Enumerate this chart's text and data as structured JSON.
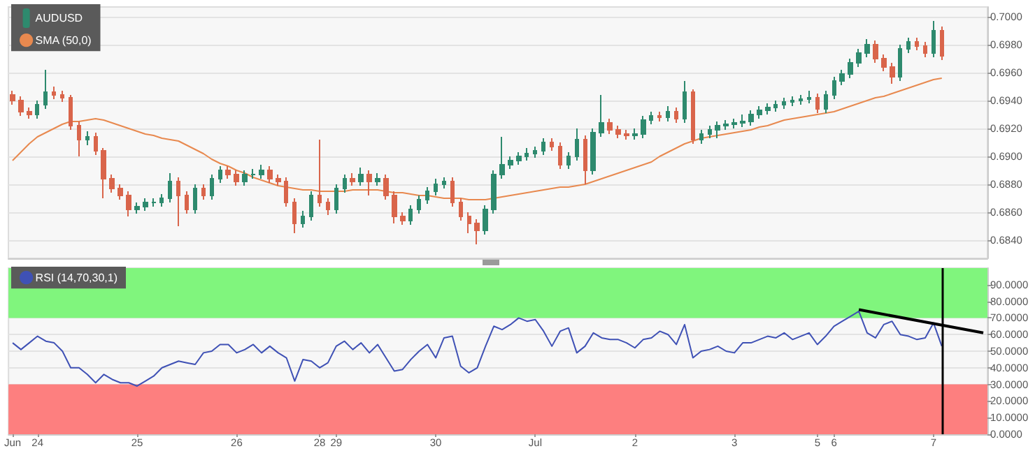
{
  "chart_data": [
    {
      "type": "candlestick",
      "legend": "top left",
      "grid": "y",
      "tick_labels": "y",
      "categories": [
        null,
        null,
        null,
        null,
        null,
        null,
        null,
        null,
        null,
        null,
        null,
        null,
        null,
        null,
        null,
        null,
        null,
        null,
        null,
        null,
        null,
        null,
        null,
        null,
        null,
        null,
        null,
        null,
        null,
        null,
        null,
        null,
        null,
        null,
        null,
        null,
        null,
        null,
        null,
        null,
        null,
        null,
        null,
        null,
        null,
        null,
        null,
        null,
        null,
        null,
        null,
        null,
        null,
        null,
        null,
        null,
        null,
        null,
        null,
        null,
        null,
        null,
        null,
        null,
        null,
        null,
        null,
        null,
        null,
        null,
        null,
        null,
        null,
        null,
        null,
        null,
        null,
        null,
        null,
        null,
        null,
        null,
        null,
        null,
        null,
        null,
        null,
        null,
        null,
        null,
        null,
        null,
        null,
        null,
        null,
        null,
        null,
        null,
        null,
        null,
        null,
        null,
        null,
        null,
        null,
        null,
        null,
        null,
        null,
        null,
        null,
        null,
        null,
        null,
        null,
        null,
        null,
        null
      ],
      "ylim": [
        0.6827,
        0.7007
      ],
      "yticks": [
        {
          "value": 0.684,
          "label": "0.6840"
        },
        {
          "value": 0.686,
          "label": "0.6860"
        },
        {
          "value": 0.688,
          "label": "0.6880"
        },
        {
          "value": 0.69,
          "label": "0.6900"
        },
        {
          "value": 0.692,
          "label": "0.6920"
        },
        {
          "value": 0.694,
          "label": "0.6940"
        },
        {
          "value": 0.696,
          "label": "0.6960"
        },
        {
          "value": 0.698,
          "label": "0.6980"
        },
        {
          "value": 0.7,
          "label": "0.7000"
        }
      ],
      "series": [
        {
          "name": "AUDUSD",
          "color": "#2e8a6e",
          "colors": [
            "#d9654b",
            "#d9654b",
            "#d9654b",
            "#2e8a6e",
            "#2e8a6e",
            "#d9654b",
            "#d9654b",
            "#d9654b",
            "#d9654b",
            "#2e8a6e",
            "#d9654b",
            "#d9654b",
            "#d9654b",
            "#d9654b",
            "#d9654b",
            "#2e8a6e",
            "#2e8a6e",
            "#2e8a6e",
            "#2e8a6e",
            "#2e8a6e",
            "#d9654b",
            "#d9654b",
            "#2e8a6e",
            "#d9654b",
            "#2e8a6e",
            "#2e8a6e",
            "#d9654b",
            "#d9654b",
            "#2e8a6e",
            "#2e8a6e",
            "#2e8a6e",
            "#d9654b",
            "#d9654b",
            "#d9654b",
            "#d9654b",
            "#2e8a6e",
            "#2e8a6e",
            "#d9654b",
            "#d9654b",
            "#2e8a6e",
            "#2e8a6e",
            "#d9654b",
            "#2e8a6e",
            "#d9654b",
            "#2e8a6e",
            "#d9654b",
            "#d9654b",
            "#d9654b",
            "#2e8a6e",
            "#2e8a6e",
            "#2e8a6e",
            "#2e8a6e",
            "#2e8a6e",
            "#d9654b",
            "#d9654b",
            "#d9654b",
            "#d9654b",
            "#2e8a6e",
            "#2e8a6e",
            "#2e8a6e",
            "#2e8a6e",
            "#2e8a6e",
            "#2e8a6e",
            "#2e8a6e",
            "#2e8a6e",
            "#d9654b",
            "#d9654b",
            "#2e8a6e",
            "#2e8a6e",
            "#d9654b",
            "#2e8a6e",
            "#2e8a6e",
            "#d9654b",
            "#d9654b",
            "#d9654b",
            "#2e8a6e",
            "#2e8a6e",
            "#2e8a6e",
            "#d9654b",
            "#2e8a6e",
            "#d9654b",
            "#2e8a6e",
            "#d9654b",
            "#2e8a6e",
            "#2e8a6e",
            "#2e8a6e",
            "#2e8a6e",
            "#2e8a6e",
            "#2e8a6e",
            "#2e8a6e",
            "#2e8a6e",
            "#2e8a6e",
            "#2e8a6e",
            "#2e8a6e",
            "#2e8a6e",
            "#2e8a6e",
            "#2e8a6e",
            "#d9654b",
            "#2e8a6e",
            "#2e8a6e",
            "#2e8a6e",
            "#2e8a6e",
            "#2e8a6e",
            "#2e8a6e",
            "#d9654b",
            "#d9654b",
            "#d9654b",
            "#2e8a6e",
            "#2e8a6e",
            "#d9654b",
            "#d9654b",
            "#2e8a6e",
            "#d9654b",
            null,
            null,
            null,
            null,
            null
          ],
          "ohlc": [
            [
              0.6944,
              0.6947,
              0.6937,
              0.694
            ],
            [
              0.694,
              0.6943,
              0.6929,
              0.6932
            ],
            [
              0.6932,
              0.6935,
              0.6927,
              0.693
            ],
            [
              0.693,
              0.694,
              0.6927,
              0.6937
            ],
            [
              0.6937,
              0.6962,
              0.6934,
              0.6946
            ],
            [
              0.6946,
              0.695,
              0.6941,
              0.6944
            ],
            [
              0.6944,
              0.6947,
              0.6939,
              0.6942
            ],
            [
              0.6942,
              0.6944,
              0.6919,
              0.6922
            ],
            [
              0.6922,
              0.6925,
              0.69,
              0.6912
            ],
            [
              0.6912,
              0.6918,
              0.6908,
              0.6914
            ],
            [
              0.6914,
              0.6917,
              0.6901,
              0.6904
            ],
            [
              0.6904,
              0.6906,
              0.687,
              0.6884
            ],
            [
              0.6884,
              0.6887,
              0.6874,
              0.6877
            ],
            [
              0.6877,
              0.688,
              0.6869,
              0.6872
            ],
            [
              0.6872,
              0.6875,
              0.6857,
              0.6862
            ],
            [
              0.6862,
              0.6867,
              0.6859,
              0.6864
            ],
            [
              0.6864,
              0.687,
              0.6861,
              0.6867
            ],
            [
              0.6867,
              0.687,
              0.6864,
              0.6867
            ],
            [
              0.6867,
              0.6873,
              0.6864,
              0.687
            ],
            [
              0.687,
              0.6888,
              0.6867,
              0.6882
            ],
            [
              0.6882,
              0.6885,
              0.685,
              0.6872
            ],
            [
              0.6872,
              0.6875,
              0.6859,
              0.6862
            ],
            [
              0.6862,
              0.688,
              0.6859,
              0.6877
            ],
            [
              0.6877,
              0.688,
              0.6869,
              0.6872
            ],
            [
              0.6872,
              0.6887,
              0.6869,
              0.6884
            ],
            [
              0.6884,
              0.6893,
              0.6881,
              0.689
            ],
            [
              0.689,
              0.6893,
              0.6884,
              0.6887
            ],
            [
              0.6887,
              0.689,
              0.6879,
              0.6882
            ],
            [
              0.6882,
              0.689,
              0.6879,
              0.6887
            ],
            [
              0.6887,
              0.6891,
              0.6884,
              0.6887
            ],
            [
              0.6887,
              0.6894,
              0.6884,
              0.689
            ],
            [
              0.689,
              0.6893,
              0.6881,
              0.6884
            ],
            [
              0.6884,
              0.6887,
              0.6879,
              0.6882
            ],
            [
              0.6882,
              0.6885,
              0.6864,
              0.6867
            ],
            [
              0.6867,
              0.687,
              0.6845,
              0.6852
            ],
            [
              0.6852,
              0.6861,
              0.6849,
              0.6857
            ],
            [
              0.6857,
              0.6875,
              0.6854,
              0.6872
            ],
            [
              0.6872,
              0.6912,
              0.6864,
              0.6867
            ],
            [
              0.6867,
              0.687,
              0.6858,
              0.6862
            ],
            [
              0.6862,
              0.688,
              0.6859,
              0.6877
            ],
            [
              0.6877,
              0.6887,
              0.6874,
              0.6884
            ],
            [
              0.6884,
              0.6888,
              0.6879,
              0.6882
            ],
            [
              0.6882,
              0.6892,
              0.6879,
              0.6887
            ],
            [
              0.6887,
              0.689,
              0.6872,
              0.6882
            ],
            [
              0.6882,
              0.6888,
              0.6879,
              0.6884
            ],
            [
              0.6884,
              0.6887,
              0.6869,
              0.6872
            ],
            [
              0.6872,
              0.6875,
              0.6852,
              0.6857
            ],
            [
              0.6857,
              0.686,
              0.6851,
              0.6854
            ],
            [
              0.6854,
              0.6865,
              0.6851,
              0.6862
            ],
            [
              0.6862,
              0.6872,
              0.6859,
              0.6869
            ],
            [
              0.6869,
              0.6878,
              0.6866,
              0.6875
            ],
            [
              0.6875,
              0.6884,
              0.6872,
              0.688
            ],
            [
              0.688,
              0.6885,
              0.6877,
              0.6882
            ],
            [
              0.6882,
              0.6885,
              0.6864,
              0.6867
            ],
            [
              0.6867,
              0.687,
              0.6854,
              0.6857
            ],
            [
              0.6857,
              0.686,
              0.6845,
              0.6852
            ],
            [
              0.6852,
              0.6855,
              0.6837,
              0.6847
            ],
            [
              0.6847,
              0.6865,
              0.6844,
              0.6862
            ],
            [
              0.6862,
              0.689,
              0.6859,
              0.6887
            ],
            [
              0.6887,
              0.6914,
              0.6884,
              0.6894
            ],
            [
              0.6894,
              0.69,
              0.6891,
              0.6897
            ],
            [
              0.6897,
              0.6903,
              0.6894,
              0.69
            ],
            [
              0.69,
              0.6906,
              0.6897,
              0.6902
            ],
            [
              0.6902,
              0.6907,
              0.6899,
              0.6904
            ],
            [
              0.6904,
              0.6913,
              0.6901,
              0.691
            ],
            [
              0.691,
              0.6913,
              0.6904,
              0.6907
            ],
            [
              0.6907,
              0.691,
              0.6891,
              0.6894
            ],
            [
              0.6894,
              0.6903,
              0.6891,
              0.69
            ],
            [
              0.69,
              0.692,
              0.6897,
              0.6912
            ],
            [
              0.6912,
              0.6915,
              0.688,
              0.689
            ],
            [
              0.689,
              0.692,
              0.6887,
              0.6917
            ],
            [
              0.6917,
              0.6944,
              0.6914,
              0.6924
            ],
            [
              0.6924,
              0.6927,
              0.6916,
              0.6919
            ],
            [
              0.6919,
              0.6922,
              0.6913,
              0.6916
            ],
            [
              0.6916,
              0.6919,
              0.6912,
              0.6915
            ],
            [
              0.6915,
              0.692,
              0.6912,
              0.6916
            ],
            [
              0.6916,
              0.6929,
              0.6913,
              0.6926
            ],
            [
              0.6926,
              0.6932,
              0.6923,
              0.6929
            ],
            [
              0.6929,
              0.6932,
              0.6925,
              0.6928
            ],
            [
              0.6928,
              0.6936,
              0.6925,
              0.6932
            ],
            [
              0.6932,
              0.6935,
              0.6924,
              0.6927
            ],
            [
              0.6927,
              0.6954,
              0.6924,
              0.6946
            ],
            [
              0.6946,
              0.6948,
              0.6909,
              0.6912
            ],
            [
              0.6912,
              0.6919,
              0.6909,
              0.6916
            ],
            [
              0.6916,
              0.6922,
              0.6913,
              0.6919
            ],
            [
              0.6919,
              0.6925,
              0.6913,
              0.6922
            ],
            [
              0.6922,
              0.6926,
              0.6919,
              0.6923
            ],
            [
              0.6923,
              0.6927,
              0.692,
              0.6924
            ],
            [
              0.6924,
              0.693,
              0.6921,
              0.6925
            ],
            [
              0.6925,
              0.6933,
              0.6922,
              0.693
            ],
            [
              0.693,
              0.6936,
              0.6927,
              0.6933
            ],
            [
              0.6933,
              0.6938,
              0.693,
              0.6935
            ],
            [
              0.6935,
              0.694,
              0.6932,
              0.6937
            ],
            [
              0.6937,
              0.6942,
              0.6934,
              0.6939
            ],
            [
              0.6939,
              0.6943,
              0.6936,
              0.694
            ],
            [
              0.694,
              0.6944,
              0.6937,
              0.6941
            ],
            [
              0.6941,
              0.6947,
              0.6938,
              0.6942
            ],
            [
              0.6942,
              0.6945,
              0.6931,
              0.6934
            ],
            [
              0.6934,
              0.6947,
              0.6931,
              0.6944
            ],
            [
              0.6944,
              0.6957,
              0.6941,
              0.6954
            ],
            [
              0.6954,
              0.6962,
              0.6951,
              0.6959
            ],
            [
              0.6959,
              0.697,
              0.6956,
              0.6967
            ],
            [
              0.6967,
              0.6977,
              0.6964,
              0.6974
            ],
            [
              0.6974,
              0.6984,
              0.6971,
              0.698
            ],
            [
              0.698,
              0.6983,
              0.6967,
              0.697
            ],
            [
              0.697,
              0.6973,
              0.6961,
              0.6964
            ],
            [
              0.6964,
              0.6967,
              0.6952,
              0.6957
            ],
            [
              0.6957,
              0.698,
              0.6954,
              0.6977
            ],
            [
              0.6977,
              0.6985,
              0.6974,
              0.6982
            ],
            [
              0.6982,
              0.6985,
              0.6976,
              0.6979
            ],
            [
              0.6979,
              0.6982,
              0.6971,
              0.6974
            ],
            [
              0.6974,
              0.6997,
              0.6971,
              0.699
            ],
            [
              0.699,
              0.6993,
              0.6969,
              0.6972
            ],
            null,
            null,
            null,
            null,
            null
          ]
        },
        {
          "name": "SMA (50,0)",
          "type": "line",
          "color": "#e8894f",
          "values": [
            0.6897,
            0.6903,
            0.6909,
            0.6914,
            0.6917,
            0.692,
            0.6923,
            0.6925,
            0.6925,
            0.6926,
            0.6927,
            0.6926,
            0.6924,
            0.6922,
            0.692,
            0.6918,
            0.6916,
            0.6915,
            0.6913,
            0.6912,
            0.6911,
            0.6908,
            0.6905,
            0.6902,
            0.6898,
            0.6895,
            0.6893,
            0.689,
            0.6888,
            0.6885,
            0.6883,
            0.6881,
            0.6879,
            0.6878,
            0.6877,
            0.6876,
            0.6876,
            0.6875,
            0.6875,
            0.6875,
            0.6875,
            0.6876,
            0.6876,
            0.6876,
            0.6876,
            0.6875,
            0.6874,
            0.6874,
            0.6873,
            0.6872,
            0.6872,
            0.6871,
            0.687,
            0.687,
            0.687,
            0.6869,
            0.6869,
            0.6869,
            0.687,
            0.6871,
            0.6872,
            0.6873,
            0.6874,
            0.6875,
            0.6876,
            0.6877,
            0.6878,
            0.6878,
            0.6879,
            0.688,
            0.6882,
            0.6884,
            0.6886,
            0.6888,
            0.689,
            0.6892,
            0.6894,
            0.6896,
            0.69,
            0.6903,
            0.6906,
            0.6909,
            0.6911,
            0.6913,
            0.6914,
            0.6915,
            0.6916,
            0.6917,
            0.6918,
            0.6919,
            0.6921,
            0.6922,
            0.6924,
            0.6926,
            0.6927,
            0.6928,
            0.6929,
            0.693,
            0.6931,
            0.6932,
            0.6934,
            0.6936,
            0.6938,
            0.694,
            0.6942,
            0.6943,
            0.6945,
            0.6947,
            0.6949,
            0.6951,
            0.6953,
            0.6955,
            0.6956,
            null,
            null,
            null,
            null,
            null
          ]
        }
      ]
    },
    {
      "type": "line",
      "legend": "top left",
      "grid": "y",
      "categories": [
        "Jun",
        null,
        null,
        "24",
        null,
        null,
        null,
        null,
        null,
        null,
        null,
        null,
        null,
        null,
        null,
        "25",
        null,
        null,
        null,
        null,
        null,
        null,
        null,
        null,
        null,
        null,
        null,
        "26",
        null,
        null,
        null,
        null,
        null,
        null,
        null,
        null,
        null,
        "28",
        null,
        "29",
        null,
        null,
        null,
        null,
        null,
        null,
        null,
        null,
        null,
        null,
        null,
        "30",
        null,
        null,
        null,
        null,
        null,
        null,
        null,
        null,
        null,
        null,
        null,
        "Jul",
        null,
        null,
        null,
        null,
        null,
        null,
        null,
        null,
        null,
        null,
        null,
        "2",
        null,
        null,
        null,
        null,
        null,
        null,
        null,
        null,
        null,
        null,
        null,
        "3",
        null,
        null,
        null,
        null,
        null,
        null,
        null,
        null,
        null,
        "5",
        null,
        "6",
        null,
        null,
        null,
        null,
        null,
        null,
        null,
        null,
        null,
        null,
        null,
        "7",
        null,
        null,
        null,
        null,
        null,
        null
      ],
      "ylim": [
        0,
        100
      ],
      "yticks": [
        {
          "value": 0,
          "label": "0.0000"
        },
        {
          "value": 10,
          "label": "10.0000"
        },
        {
          "value": 20,
          "label": "20.0000"
        },
        {
          "value": 30,
          "label": "30.0000"
        },
        {
          "value": 40,
          "label": "40.0000"
        },
        {
          "value": 50,
          "label": "50.0000"
        },
        {
          "value": 60,
          "label": "60.0000"
        },
        {
          "value": 70,
          "label": "70.0000"
        },
        {
          "value": 80,
          "label": "80.0000"
        },
        {
          "value": 90,
          "label": "90.0000"
        }
      ],
      "bands": [
        {
          "axis": "y",
          "from": 70,
          "to": 100,
          "color": "#80f57d"
        },
        {
          "axis": "y",
          "from": 0,
          "to": 30,
          "color": "#fd7f7f"
        }
      ],
      "series": [
        {
          "name": "RSI (14,70,30,1)",
          "color": "#3f51b5",
          "values": [
            55,
            51,
            55,
            59,
            56,
            55,
            50,
            40,
            40,
            36,
            31,
            36,
            33,
            31,
            31,
            29,
            32,
            35,
            40,
            42,
            44,
            43,
            42,
            49,
            50,
            54,
            54,
            49,
            51,
            54,
            49,
            53,
            49,
            46,
            32,
            45,
            44,
            40,
            43,
            53,
            56,
            51,
            55,
            49,
            54,
            46,
            38,
            39,
            45,
            50,
            54,
            46,
            58,
            59,
            41,
            37,
            40,
            53,
            65,
            63,
            66,
            70,
            68,
            69,
            62,
            53,
            62,
            64,
            49,
            53,
            61,
            58,
            57,
            57,
            55,
            52,
            57,
            58,
            62,
            60,
            54,
            66,
            46,
            50,
            51,
            53,
            50,
            49,
            55,
            55,
            57,
            59,
            58,
            61,
            57,
            59,
            61,
            54,
            59,
            65,
            68,
            71,
            74,
            61,
            58,
            66,
            68,
            60,
            59,
            57,
            58,
            67,
            53,
            null,
            null,
            null,
            null,
            null
          ]
        },
        {
          "color": "#000000",
          "values": [
            null,
            null,
            null,
            null,
            null,
            null,
            null,
            null,
            null,
            null,
            null,
            null,
            null,
            null,
            null,
            null,
            null,
            null,
            null,
            null,
            null,
            null,
            null,
            null,
            null,
            null,
            null,
            null,
            null,
            null,
            null,
            null,
            null,
            null,
            null,
            null,
            null,
            null,
            null,
            null,
            null,
            null,
            null,
            null,
            null,
            null,
            null,
            null,
            null,
            null,
            null,
            null,
            null,
            null,
            null,
            null,
            null,
            null,
            null,
            null,
            null,
            null,
            null,
            null,
            null,
            null,
            null,
            null,
            null,
            null,
            null,
            null,
            null,
            null,
            null,
            null,
            null,
            null,
            null,
            null,
            null,
            null,
            null,
            null,
            null,
            null,
            null,
            null,
            null,
            null,
            null,
            null,
            null,
            null,
            null,
            null,
            null,
            null,
            null,
            null,
            null,
            null,
            75,
            null,
            null,
            null,
            null,
            null,
            null,
            null,
            null,
            null,
            null,
            null,
            null,
            null,
            null,
            61
          ]
        }
      ]
    }
  ]
}
